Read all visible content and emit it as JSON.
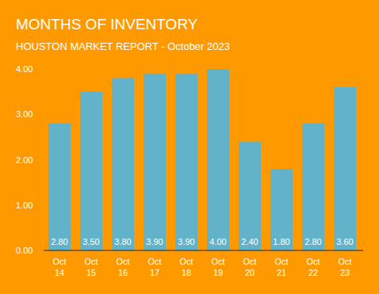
{
  "chart_data": {
    "type": "bar",
    "title": "MONTHS OF INVENTORY",
    "subtitle": "HOUSTON MARKET REPORT - October 2023",
    "categories": [
      "Oct 14",
      "Oct 15",
      "Oct 16",
      "Oct 17",
      "Oct 18",
      "Oct 19",
      "Oct 20",
      "Oct 21",
      "Oct 22",
      "Oct 23"
    ],
    "values": [
      2.8,
      3.5,
      3.8,
      3.9,
      3.9,
      4.0,
      2.4,
      1.8,
      2.8,
      3.6
    ],
    "value_labels": [
      "2.80",
      "3.50",
      "3.80",
      "3.90",
      "3.90",
      "4.00",
      "2.40",
      "1.80",
      "2.80",
      "3.60"
    ],
    "color": "#62b3c9",
    "ylim": [
      0,
      4
    ],
    "yticks": [
      {
        "value": 0,
        "label": "0.00"
      },
      {
        "value": 1,
        "label": "1.00"
      },
      {
        "value": 2,
        "label": "2.00"
      },
      {
        "value": 3,
        "label": "3.00"
      },
      {
        "value": 4,
        "label": "4.00"
      }
    ],
    "grid": false,
    "data_labels": true
  }
}
